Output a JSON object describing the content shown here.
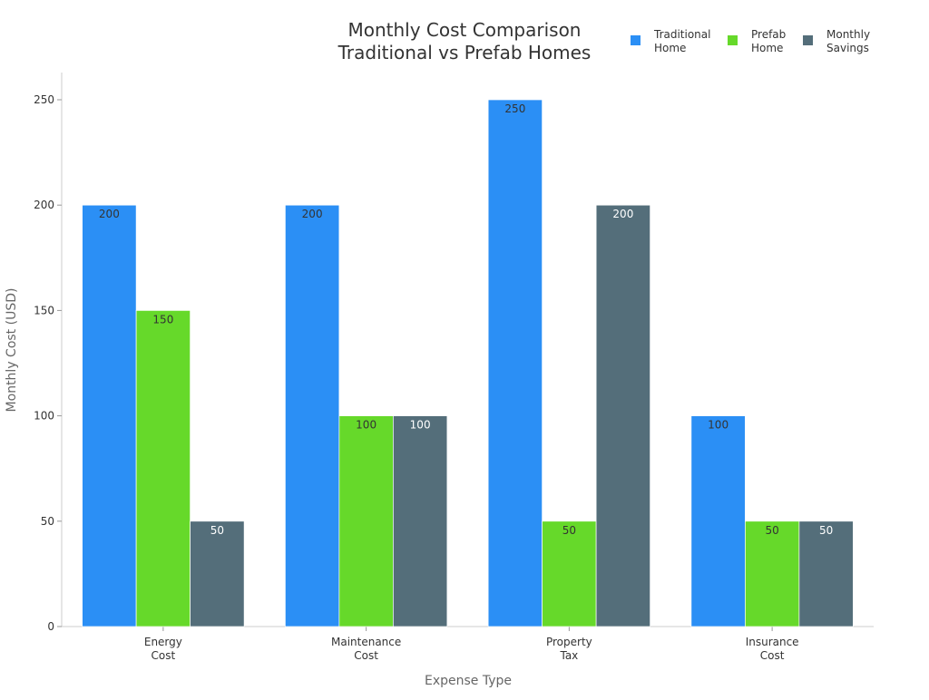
{
  "chart_data": {
    "type": "bar",
    "title": [
      "Monthly Cost Comparison",
      "Traditional vs Prefab Homes"
    ],
    "xlabel": "Expense Type",
    "ylabel": "Monthly Cost (USD)",
    "categories": [
      [
        "Energy",
        "Cost"
      ],
      [
        "Maintenance",
        "Cost"
      ],
      [
        "Property",
        "Tax"
      ],
      [
        "Insurance",
        "Cost"
      ]
    ],
    "series": [
      {
        "name": [
          "Traditional",
          "Home"
        ],
        "color": "#2b8ff5",
        "label_color": "#333333",
        "values": [
          200,
          200,
          250,
          100
        ]
      },
      {
        "name": [
          "Prefab",
          "Home"
        ],
        "color": "#66d92a",
        "label_color": "#333333",
        "values": [
          150,
          100,
          50,
          50
        ]
      },
      {
        "name": [
          "Monthly",
          "Savings"
        ],
        "color": "#546e7a",
        "label_color": "#ffffff",
        "values": [
          50,
          100,
          200,
          50
        ]
      }
    ],
    "ylim": [
      0,
      262
    ],
    "yticks": [
      0,
      50,
      100,
      150,
      200,
      250
    ],
    "grid": false,
    "legend": "top-right"
  }
}
